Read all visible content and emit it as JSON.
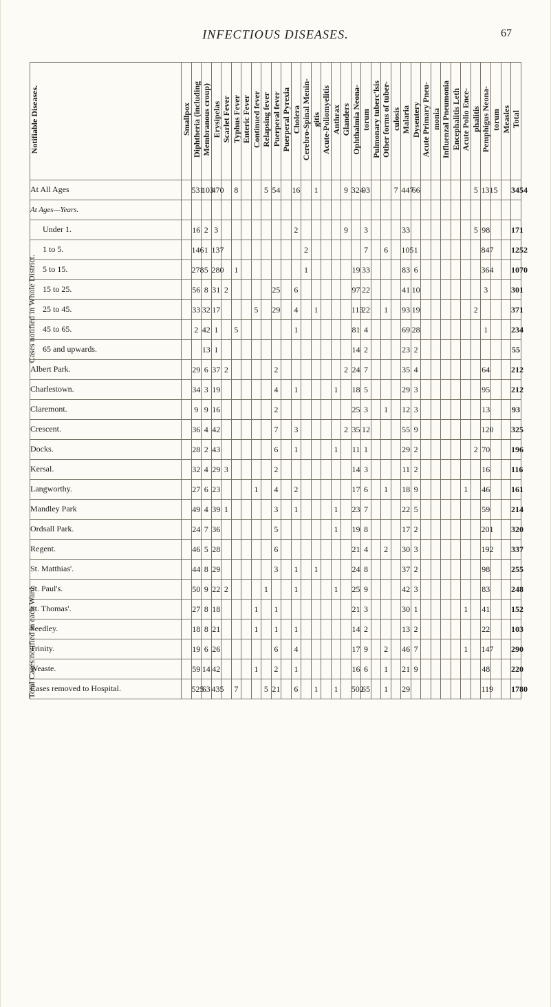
{
  "header": {
    "running_title": "INFECTIOUS DISEASES.",
    "page_number": "67"
  },
  "side_labels": {
    "upper": "Cases notified in Whole District.",
    "lower": "Total Cases notified in each Ward."
  },
  "stub_group_labels": {
    "ages_group": "At Ages—Years."
  },
  "column_headers": [
    "Notifiable Diseases.",
    "At All Ages",
    "Under 1.",
    "1 to 5.",
    "5 to 15.",
    "15 to 25.",
    "25 to 45.",
    "45 to 65.",
    "65 and upwards.",
    "Albert Park.",
    "Charlestown.",
    "Claremont.",
    "Crescent.",
    "Docks.",
    "Kersal.",
    "Langworthy.",
    "Mandley Park",
    "Ordsall Park.",
    "Regent.",
    "St. Matthias'.",
    "St. Paul's.",
    "St. Thomas'.",
    "Seedley.",
    "Trinity.",
    "Weaste.",
    "Cases removed to Hospital."
  ],
  "rows": [
    {
      "label": "Smallpox",
      "indent": false,
      "cells": [
        "",
        "",
        "",
        "",
        "",
        "",
        "",
        "",
        "",
        "",
        "",
        "",
        "",
        "",
        "",
        "",
        "",
        "",
        "",
        "",
        "",
        "",
        "",
        "",
        "",
        ""
      ]
    },
    {
      "label": "Diphtheria (including",
      "indent": false,
      "cells": [
        "531",
        "16",
        "146",
        "278",
        "56",
        "33",
        "2",
        "",
        "29",
        "34",
        "9",
        "36",
        "28",
        "32",
        "27",
        "49",
        "24",
        "46",
        "44",
        "50",
        "27",
        "18",
        "19",
        "59",
        "525",
        ""
      ]
    },
    {
      "label": "Membranous croup)",
      "indent": true,
      "cells": [
        "103",
        "2",
        "1",
        "5",
        "8",
        "32",
        "42",
        "13",
        "6",
        "3",
        "9",
        "4",
        "2",
        "4",
        "6",
        "4",
        "7",
        "5",
        "8",
        "9",
        "8",
        "8",
        "6",
        "14",
        "63",
        ""
      ]
    },
    {
      "label": "Erysipelas",
      "indent": false,
      "cells": [
        "470",
        "3",
        "137",
        "280",
        "31",
        "17",
        "1",
        "1",
        "37",
        "19",
        "16",
        "42",
        "43",
        "29",
        "23",
        "39",
        "36",
        "28",
        "29",
        "22",
        "18",
        "21",
        "26",
        "42",
        "435",
        ""
      ]
    },
    {
      "label": "Scarlet Fever",
      "indent": false,
      "cells": [
        "",
        "",
        "",
        "",
        "2",
        "",
        "",
        "",
        "2",
        "",
        "",
        "",
        "",
        "3",
        "",
        "1",
        "",
        "",
        "",
        "2",
        "",
        "",
        "",
        "",
        "",
        ""
      ]
    },
    {
      "label": "Typhus Fever",
      "indent": false,
      "cells": [
        "8",
        "",
        "",
        "1",
        "",
        "",
        "5",
        "",
        "",
        "",
        "",
        "",
        "",
        "",
        "",
        "",
        "",
        "",
        "",
        "",
        "",
        "",
        "",
        "",
        "7",
        ""
      ]
    },
    {
      "label": "Enteric Fever",
      "indent": false,
      "cells": [
        "",
        "",
        "",
        "",
        "",
        "",
        "",
        "",
        "",
        "",
        "",
        "",
        "",
        "",
        "",
        "",
        "",
        "",
        "",
        "",
        "",
        "",
        "",
        "",
        "",
        ""
      ]
    },
    {
      "label": "Continued fever",
      "indent": false,
      "cells": [
        "",
        "",
        "",
        "",
        "",
        "5",
        "",
        "",
        "",
        "",
        "",
        "",
        "",
        "",
        "1",
        "",
        "",
        "",
        "",
        "",
        "1",
        "1",
        "",
        "1",
        "",
        ""
      ]
    },
    {
      "label": "Relapsing fever",
      "indent": false,
      "cells": [
        "5",
        "",
        "",
        "",
        "",
        "",
        "",
        "",
        "",
        "",
        "",
        "",
        "",
        "",
        "",
        "",
        "",
        "",
        "",
        "1",
        "",
        "",
        "",
        "",
        "5",
        ""
      ]
    },
    {
      "label": "Puerperal fever",
      "indent": false,
      "cells": [
        "54",
        "",
        "",
        "",
        "25",
        "29",
        "",
        "",
        "2",
        "4",
        "2",
        "7",
        "6",
        "2",
        "4",
        "3",
        "5",
        "6",
        "3",
        "",
        "1",
        "1",
        "6",
        "2",
        "21",
        ""
      ]
    },
    {
      "label": "Puerperal Pyrexia",
      "indent": false,
      "cells": [
        "",
        "",
        "",
        "",
        "",
        "",
        "",
        "",
        "",
        "",
        "",
        "",
        "",
        "",
        "",
        "",
        "",
        "",
        "",
        "",
        "",
        "",
        "",
        "",
        "",
        ""
      ]
    },
    {
      "label": "Cholera",
      "indent": false,
      "cells": [
        "16",
        "2",
        "",
        "",
        "6",
        "4",
        "1",
        "",
        "",
        "1",
        "",
        "3",
        "1",
        "",
        "2",
        "1",
        "",
        "",
        "1",
        "1",
        "",
        "1",
        "4",
        "1",
        "6",
        ""
      ]
    },
    {
      "label": "Cerebro-Spinal Menin-",
      "indent": false,
      "cells": [
        "",
        "",
        "2",
        "1",
        "",
        "",
        "",
        "",
        "",
        "",
        "",
        "",
        "",
        "",
        "",
        "",
        "",
        "",
        "",
        "",
        "",
        "",
        "",
        "",
        "",
        ""
      ]
    },
    {
      "label": "gitis",
      "indent": true,
      "cells": [
        "1",
        "",
        "",
        "",
        "",
        "1",
        "",
        "",
        "",
        "",
        "",
        "",
        "",
        "",
        "",
        "",
        "",
        "",
        "1",
        "",
        "",
        "",
        "",
        "",
        "1",
        ""
      ]
    },
    {
      "label": "Acute-Poliomyelitis",
      "indent": false,
      "cells": [
        "",
        "",
        "",
        "",
        "",
        "",
        "",
        "",
        "",
        "",
        "",
        "",
        "",
        "",
        "",
        "",
        "",
        "",
        "",
        "",
        "",
        "",
        "",
        "",
        "",
        ""
      ]
    },
    {
      "label": "Anthrax",
      "indent": false,
      "cells": [
        "",
        "",
        "",
        "",
        "",
        "",
        "",
        "",
        "",
        "1",
        "",
        "",
        "1",
        "",
        "",
        "1",
        "1",
        "",
        "",
        "1",
        "",
        "",
        "",
        "",
        "1",
        ""
      ]
    },
    {
      "label": "Glanders",
      "indent": false,
      "cells": [
        "9",
        "9",
        "",
        "",
        "",
        "",
        "",
        "",
        "2",
        "",
        "",
        "2",
        "",
        "",
        "",
        "",
        "",
        "",
        "",
        "",
        "",
        "",
        "",
        "",
        "",
        ""
      ]
    },
    {
      "label": "Ophthalmia Neona-",
      "indent": false,
      "cells": [
        "324",
        "",
        "",
        "19",
        "97",
        "113",
        "81",
        "14",
        "24",
        "18",
        "25",
        "35",
        "11",
        "14",
        "17",
        "23",
        "19",
        "21",
        "24",
        "25",
        "21",
        "14",
        "17",
        "16",
        "502",
        ""
      ]
    },
    {
      "label": "torum",
      "indent": true,
      "cells": [
        "93",
        "3",
        "7",
        "33",
        "22",
        "22",
        "4",
        "2",
        "7",
        "5",
        "3",
        "12",
        "1",
        "3",
        "6",
        "7",
        "8",
        "4",
        "8",
        "9",
        "3",
        "2",
        "9",
        "6",
        "65",
        ""
      ]
    },
    {
      "label": "Pulmonary tuberc'lsis",
      "indent": false,
      "cells": [
        "",
        "",
        "",
        "",
        "",
        "",
        "",
        "",
        "",
        "",
        "",
        "",
        "",
        "",
        "",
        "",
        "",
        "",
        "",
        "",
        "",
        "",
        "",
        "",
        "",
        ""
      ]
    },
    {
      "label": "Other forms of tuber-",
      "indent": false,
      "cells": [
        "",
        "",
        "6",
        "",
        "",
        "1",
        "",
        "",
        "",
        "",
        "1",
        "",
        "",
        "",
        "1",
        "",
        "",
        "2",
        "",
        "",
        "",
        "",
        "2",
        "1",
        "1",
        ""
      ]
    },
    {
      "label": "culosis",
      "indent": true,
      "cells": [
        "7",
        "",
        "",
        "",
        "",
        "",
        "",
        "",
        "",
        "",
        "",
        "",
        "",
        "",
        "",
        "",
        "",
        "",
        "",
        "",
        "",
        "",
        "",
        "",
        "",
        ""
      ]
    },
    {
      "label": "Malaria",
      "indent": false,
      "cells": [
        "447",
        "33",
        "105",
        "83",
        "41",
        "93",
        "69",
        "23",
        "35",
        "29",
        "12",
        "55",
        "29",
        "11",
        "18",
        "22",
        "17",
        "30",
        "37",
        "42",
        "30",
        "13",
        "46",
        "21",
        "29",
        ""
      ]
    },
    {
      "label": "Dysentery",
      "indent": false,
      "cells": [
        "66",
        "",
        "1",
        "6",
        "10",
        "19",
        "28",
        "2",
        "4",
        "3",
        "3",
        "9",
        "2",
        "2",
        "9",
        "5",
        "2",
        "3",
        "2",
        "3",
        "1",
        "2",
        "7",
        "9",
        "",
        ""
      ]
    },
    {
      "label": "Acute Primary Pneu-",
      "indent": false,
      "cells": [
        "",
        "",
        "",
        "",
        "",
        "",
        "",
        "",
        "",
        "",
        "",
        "",
        "",
        "",
        "",
        "",
        "",
        "",
        "",
        "",
        "",
        "",
        "",
        "",
        "",
        ""
      ]
    },
    {
      "label": "monia",
      "indent": true,
      "cells": [
        "",
        "",
        "",
        "",
        "",
        "",
        "",
        "",
        "",
        "",
        "",
        "",
        "",
        "",
        "",
        "",
        "",
        "",
        "",
        "",
        "",
        "",
        "",
        "",
        "",
        ""
      ]
    },
    {
      "label": "Influenzal Pneumonia",
      "indent": false,
      "cells": [
        "",
        "",
        "",
        "",
        "",
        "",
        "",
        "",
        "",
        "",
        "",
        "",
        "",
        "",
        "",
        "",
        "",
        "",
        "",
        "",
        "",
        "",
        "",
        "",
        "",
        ""
      ]
    },
    {
      "label": "Encephalitis Leth",
      "indent": false,
      "cells": [
        "",
        "",
        "",
        "",
        "",
        "",
        "",
        "",
        "",
        "",
        "",
        "",
        "",
        "",
        "",
        "",
        "",
        "",
        "",
        "",
        "",
        "",
        "",
        "",
        "",
        ""
      ]
    },
    {
      "label": "Acute Polio Ence-",
      "indent": false,
      "cells": [
        "",
        "",
        "",
        "",
        "",
        "",
        "",
        "",
        "",
        "",
        "",
        "",
        "",
        "",
        "1",
        "",
        "",
        "",
        "",
        "",
        "1",
        "",
        "1",
        "",
        "",
        ""
      ]
    },
    {
      "label": "phalitis",
      "indent": true,
      "cells": [
        "5",
        "5",
        "",
        "",
        "",
        "2",
        "",
        "",
        "",
        "",
        "",
        "",
        "2",
        "",
        "",
        "",
        "",
        "",
        "",
        "",
        "",
        "",
        "",
        "",
        "",
        ""
      ]
    },
    {
      "label": "Pemphigus Neona-",
      "indent": false,
      "cells": [
        "1315",
        "98",
        "847",
        "364",
        "3",
        "",
        "1",
        "",
        "64",
        "95",
        "13",
        "120",
        "70",
        "16",
        "46",
        "59",
        "201",
        "192",
        "98",
        "83",
        "41",
        "22",
        "147",
        "48",
        "119",
        ""
      ]
    },
    {
      "label": "torum",
      "indent": true,
      "cells": [
        "",
        "",
        "",
        "",
        "",
        "",
        "",
        "",
        "",
        "",
        "",
        "",
        "",
        "",
        "",
        "",
        "",
        "",
        "",
        "",
        "",
        "",
        "",
        "",
        "",
        ""
      ]
    },
    {
      "label": "Measles",
      "indent": false,
      "cells": [
        "",
        "",
        "",
        "",
        "",
        "",
        "",
        "",
        "",
        "",
        "",
        "",
        "",
        "",
        "",
        "",
        "",
        "",
        "",
        "",
        "",
        "",
        "",
        "",
        "",
        ""
      ]
    }
  ],
  "total_row": {
    "label": "Total",
    "cells": [
      "3454",
      "171",
      "1252",
      "1070",
      "301",
      "371",
      "234",
      "55",
      "212",
      "212",
      "93",
      "325",
      "196",
      "116",
      "161",
      "214",
      "320",
      "337",
      "255",
      "248",
      "152",
      "103",
      "290",
      "220",
      "1780",
      ""
    ]
  },
  "colors": {
    "rule": "#7a7266",
    "paper": "#fdfbf6",
    "ink": "#1a1a1a"
  },
  "fontsizes": {
    "running": 18,
    "pagenum": 16,
    "header": 12,
    "cell": 12,
    "side": 12
  }
}
